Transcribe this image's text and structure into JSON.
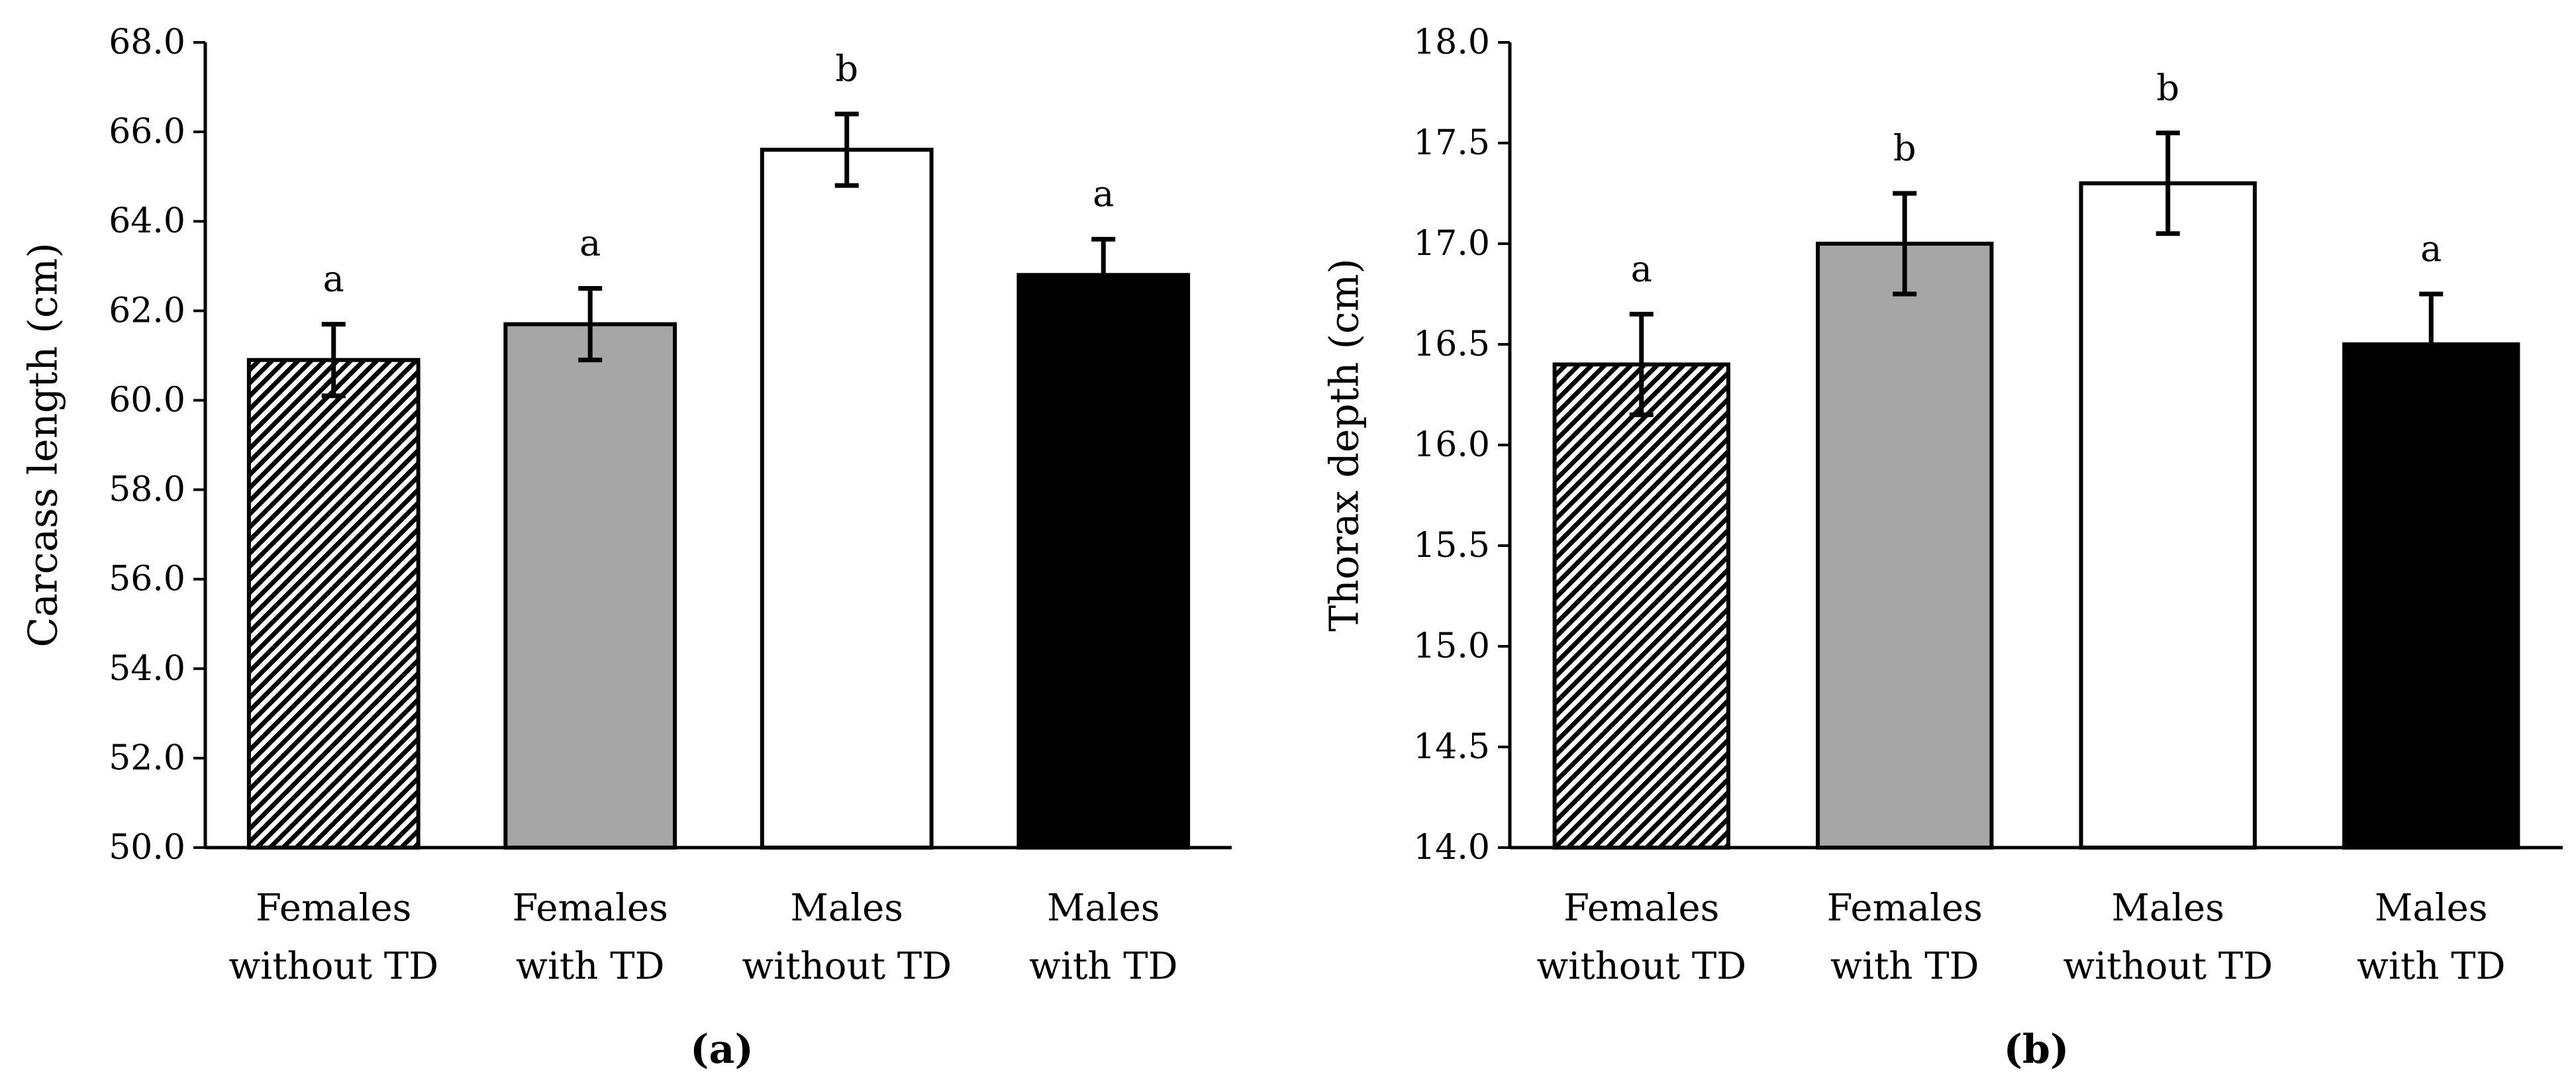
{
  "chart_data": [
    {
      "type": "bar",
      "panel_label": "(a)",
      "title": "",
      "xlabel": "",
      "ylabel": "Carcass length (cm)",
      "ylim": [
        50,
        68
      ],
      "ytick_step": 2,
      "ytick_decimals": 1,
      "grid": false,
      "categories": [
        [
          "Females",
          "without TD"
        ],
        [
          "Females",
          "with TD"
        ],
        [
          "Males",
          "without TD"
        ],
        [
          "Males",
          "with TD"
        ]
      ],
      "values": [
        60.9,
        61.7,
        65.6,
        62.8
      ],
      "errors": [
        0.8,
        0.8,
        0.8,
        0.8
      ],
      "significance_letters": [
        "a",
        "a",
        "b",
        "a"
      ]
    },
    {
      "type": "bar",
      "panel_label": "(b)",
      "title": "",
      "xlabel": "",
      "ylabel": "Thorax depth (cm)",
      "ylim": [
        14,
        18
      ],
      "ytick_step": 0.5,
      "ytick_decimals": 1,
      "grid": false,
      "categories": [
        [
          "Females",
          "without TD"
        ],
        [
          "Females",
          "with TD"
        ],
        [
          "Males",
          "without TD"
        ],
        [
          "Males",
          "with TD"
        ]
      ],
      "values": [
        16.4,
        17.0,
        17.3,
        16.5
      ],
      "errors": [
        0.25,
        0.25,
        0.25,
        0.25
      ],
      "significance_letters": [
        "a",
        "b",
        "b",
        "a"
      ]
    }
  ],
  "bar_fills": [
    "hatched",
    "#a6a6a6",
    "#ffffff",
    "#000000"
  ],
  "colors": {
    "axis": "#000000",
    "bar_stroke": "#000000",
    "grey": "#a6a6a6",
    "black": "#000000",
    "white": "#ffffff"
  }
}
